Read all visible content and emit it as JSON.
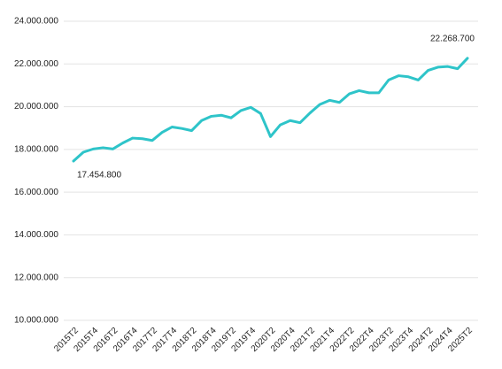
{
  "chart_data": {
    "type": "line",
    "categories": [
      "2015T2",
      null,
      "2015T4",
      null,
      "2016T2",
      null,
      "2016T4",
      null,
      "2017T2",
      null,
      "2017T4",
      null,
      "2018T2",
      null,
      "2018T4",
      null,
      "2019T2",
      null,
      "2019T4",
      null,
      "2020T2",
      null,
      "2020T4",
      null,
      "2021T2",
      null,
      "2021T4",
      null,
      "2022T2",
      null,
      "2022T4",
      null,
      "2023T2",
      null,
      "2023T4",
      null,
      "2024T2",
      null,
      "2024T4",
      null,
      "2025T2"
    ],
    "series": [
      {
        "color": "#2ec4c9",
        "values": [
          17454800,
          17870000,
          18020000,
          18080000,
          18020000,
          18300000,
          18530000,
          18500000,
          18420000,
          18800000,
          19050000,
          18980000,
          18880000,
          19350000,
          19550000,
          19600000,
          19480000,
          19820000,
          19970000,
          19680000,
          18600000,
          19150000,
          19350000,
          19250000,
          19700000,
          20100000,
          20300000,
          20200000,
          20600000,
          20750000,
          20650000,
          20650000,
          21250000,
          21450000,
          21400000,
          21250000,
          21700000,
          21850000,
          21880000,
          21780000,
          22268700
        ],
        "value_labels": [
          "17.454.800",
          null,
          null,
          null,
          null,
          null,
          null,
          null,
          null,
          null,
          null,
          null,
          null,
          null,
          null,
          null,
          null,
          null,
          null,
          null,
          null,
          null,
          null,
          null,
          null,
          null,
          null,
          null,
          null,
          null,
          null,
          null,
          null,
          null,
          null,
          null,
          null,
          null,
          null,
          null,
          "22.268.700"
        ]
      }
    ],
    "ylim": [
      10000000,
      24000000
    ],
    "yticks": [
      {
        "value": 10000000,
        "label": "10.000.000"
      },
      {
        "value": 12000000,
        "label": "12.000.000"
      },
      {
        "value": 14000000,
        "label": "14.000.000"
      },
      {
        "value": 16000000,
        "label": "16.000.000"
      },
      {
        "value": 18000000,
        "label": "18.000.000"
      },
      {
        "value": 20000000,
        "label": "20.000.000"
      },
      {
        "value": 22000000,
        "label": "22.000.000"
      },
      {
        "value": 24000000,
        "label": "24.000.000"
      }
    ],
    "grid": true
  }
}
